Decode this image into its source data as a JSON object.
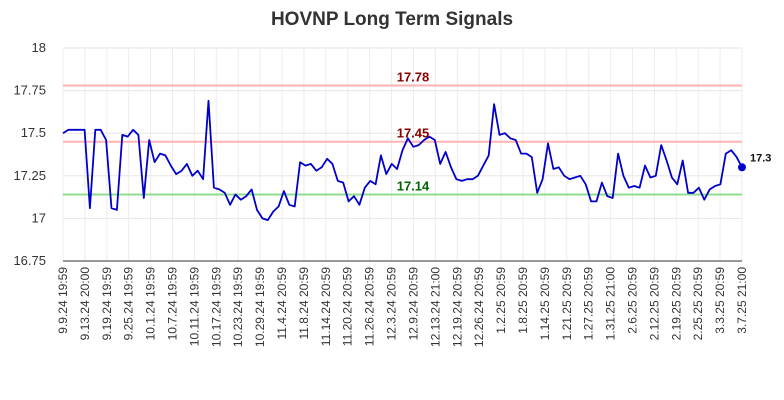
{
  "chart_data": {
    "type": "line",
    "title": "HOVNP Long Term Signals",
    "xlabel": "",
    "ylabel": "",
    "ylim": [
      16.75,
      18
    ],
    "yticks": [
      "16.75",
      "17",
      "17.25",
      "17.5",
      "17.75",
      "18"
    ],
    "yticks_values": [
      16.75,
      17,
      17.25,
      17.5,
      17.75,
      18
    ],
    "grid": true,
    "xtick_labels": [
      "9.9.24 19:59",
      "9.13.24 20:00",
      "9.19.24 19:59",
      "9.25.24 19:59",
      "10.1.24 19:59",
      "10.7.24 19:59",
      "10.11.24 19:59",
      "10.17.24 19:59",
      "10.23.24 19:59",
      "10.29.24 19:59",
      "11.4.24 20:59",
      "11.8.24 20:59",
      "11.14.24 20:59",
      "11.20.24 20:59",
      "11.26.24 20:59",
      "12.3.24 20:59",
      "12.9.24 20:59",
      "12.13.24 21:00",
      "12.19.24 20:59",
      "12.26.24 20:59",
      "1.2.25 20:59",
      "1.8.25 20:59",
      "1.14.25 20:59",
      "1.21.25 20:59",
      "1.27.25 20:59",
      "1.31.25 21:00",
      "2.6.25 20:59",
      "2.12.25 20:59",
      "2.19.25 20:59",
      "2.25.25 20:59",
      "3.3.25 20:59",
      "3.7.25 21:00"
    ],
    "hlines": [
      {
        "value": 17.78,
        "label": "17.78",
        "line_color": "#ffb3b3",
        "label_color": "#8b0000"
      },
      {
        "value": 17.45,
        "label": "17.45",
        "line_color": "#ffb3b3",
        "label_color": "#8b0000"
      },
      {
        "value": 17.14,
        "label": "17.14",
        "line_color": "#8fdc8f",
        "label_color": "#006400"
      }
    ],
    "series": [
      {
        "color": "#0000cc",
        "last_label": "17.3",
        "values": [
          17.5,
          17.52,
          17.52,
          17.52,
          17.52,
          17.06,
          17.52,
          17.52,
          17.46,
          17.06,
          17.05,
          17.49,
          17.48,
          17.52,
          17.49,
          17.12,
          17.46,
          17.33,
          17.38,
          17.37,
          17.31,
          17.26,
          17.28,
          17.32,
          17.25,
          17.28,
          17.23,
          17.69,
          17.18,
          17.17,
          17.15,
          17.08,
          17.14,
          17.11,
          17.13,
          17.17,
          17.05,
          17.0,
          16.99,
          17.04,
          17.07,
          17.16,
          17.08,
          17.07,
          17.33,
          17.31,
          17.32,
          17.28,
          17.3,
          17.35,
          17.32,
          17.22,
          17.21,
          17.1,
          17.13,
          17.08,
          17.18,
          17.22,
          17.2,
          17.37,
          17.26,
          17.32,
          17.29,
          17.4,
          17.47,
          17.42,
          17.43,
          17.46,
          17.48,
          17.46,
          17.32,
          17.39,
          17.3,
          17.23,
          17.22,
          17.23,
          17.23,
          17.25,
          17.31,
          17.37,
          17.67,
          17.49,
          17.5,
          17.47,
          17.46,
          17.38,
          17.38,
          17.36,
          17.15,
          17.23,
          17.44,
          17.29,
          17.3,
          17.25,
          17.23,
          17.24,
          17.25,
          17.2,
          17.1,
          17.1,
          17.21,
          17.13,
          17.12,
          17.38,
          17.25,
          17.18,
          17.19,
          17.18,
          17.31,
          17.24,
          17.25,
          17.43,
          17.34,
          17.24,
          17.2,
          17.34,
          17.15,
          17.15,
          17.18,
          17.11,
          17.17,
          17.19,
          17.2,
          17.38,
          17.4,
          17.36,
          17.3
        ]
      }
    ]
  }
}
